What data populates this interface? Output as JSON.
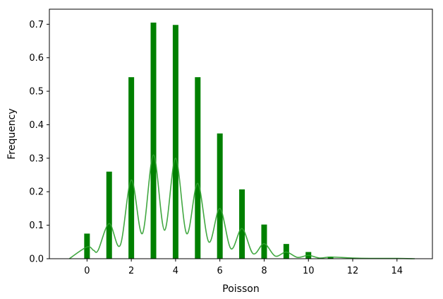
{
  "chart_data": {
    "type": "bar",
    "xlabel": "Poisson",
    "ylabel": "Frequency",
    "xlim": [
      -1.7,
      15.6
    ],
    "ylim": [
      0,
      0.745
    ],
    "x_ticks": [
      0,
      2,
      4,
      6,
      8,
      10,
      12,
      14
    ],
    "y_ticks": [
      0.0,
      0.1,
      0.2,
      0.3,
      0.4,
      0.5,
      0.6,
      0.7
    ],
    "grid": false,
    "bar_color": "#008000",
    "kde_color": "#2e9e2e",
    "bars": {
      "x": [
        0,
        1,
        2,
        3,
        4,
        5,
        6,
        7,
        8,
        9,
        10,
        11,
        12,
        13,
        14
      ],
      "values": [
        0.075,
        0.26,
        0.542,
        0.705,
        0.698,
        0.542,
        0.374,
        0.207,
        0.102,
        0.044,
        0.02,
        0.006,
        0.002,
        0.001,
        0.001
      ]
    },
    "kde": {
      "x": [
        -0.8,
        0,
        0.3,
        0.5,
        1.0,
        1.5,
        2.0,
        2.5,
        3.0,
        3.5,
        4.0,
        4.5,
        5.0,
        5.5,
        6.0,
        6.5,
        7.0,
        7.5,
        8.0,
        8.5,
        9.0,
        9.5,
        10.0,
        10.5,
        11.0,
        12.0,
        13.0,
        14.0,
        14.8
      ],
      "values": [
        0.0,
        0.035,
        0.025,
        0.025,
        0.105,
        0.04,
        0.235,
        0.075,
        0.31,
        0.085,
        0.3,
        0.075,
        0.225,
        0.05,
        0.15,
        0.03,
        0.09,
        0.015,
        0.045,
        0.008,
        0.02,
        0.004,
        0.01,
        0.002,
        0.005,
        0.002,
        0.001,
        0.001,
        0.0
      ]
    }
  }
}
